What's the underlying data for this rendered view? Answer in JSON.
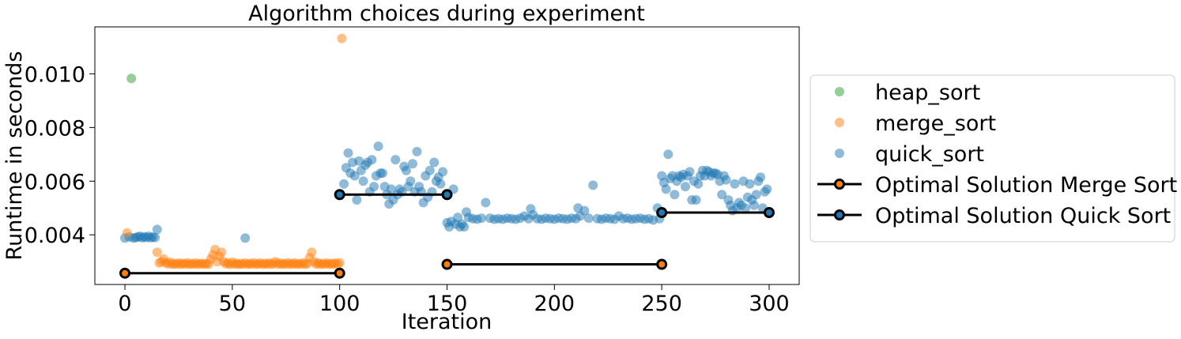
{
  "chart_data": {
    "type": "scatter",
    "title": "Algorithm choices during experiment",
    "xlabel": "Iteration",
    "ylabel": "Runtime in seconds",
    "xlim": [
      -14,
      314
    ],
    "ylim": [
      0.00215,
      0.01175
    ],
    "xticks": [
      0,
      50,
      100,
      150,
      200,
      250,
      300
    ],
    "yticks": [
      0.004,
      0.006,
      0.008,
      0.01
    ],
    "ytick_labels": [
      "0.004",
      "0.006",
      "0.008",
      "0.010"
    ],
    "grid": false,
    "legend_position": "right",
    "colors": {
      "heap_sort": "#2ca02c",
      "merge_sort": "#ff7f0e",
      "quick_sort": "#1f77b4",
      "optimal_line": "#000000"
    },
    "scatter_series": [
      {
        "name": "heap_sort",
        "points": [
          [
            3,
            0.00983
          ]
        ]
      },
      {
        "name": "merge_sort",
        "points": [
          [
            1,
            0.00407
          ],
          [
            15,
            0.00335
          ],
          [
            16,
            0.00295
          ],
          [
            17,
            0.003
          ],
          [
            18,
            0.0031
          ],
          [
            19,
            0.00296
          ],
          [
            20,
            0.00292
          ],
          [
            21,
            0.00298
          ],
          [
            22,
            0.0029
          ],
          [
            23,
            0.00293
          ],
          [
            24,
            0.00291
          ],
          [
            25,
            0.00295
          ],
          [
            26,
            0.0029
          ],
          [
            27,
            0.00294
          ],
          [
            28,
            0.00291
          ],
          [
            29,
            0.00296
          ],
          [
            30,
            0.0029
          ],
          [
            31,
            0.00293
          ],
          [
            32,
            0.00291
          ],
          [
            33,
            0.00295
          ],
          [
            34,
            0.0029
          ],
          [
            35,
            0.00292
          ],
          [
            36,
            0.00294
          ],
          [
            37,
            0.0029
          ],
          [
            38,
            0.00293
          ],
          [
            39,
            0.00291
          ],
          [
            40,
            0.0031
          ],
          [
            41,
            0.00325
          ],
          [
            42,
            0.00345
          ],
          [
            43,
            0.003
          ],
          [
            44,
            0.0032
          ],
          [
            45,
            0.00335
          ],
          [
            46,
            0.003
          ],
          [
            47,
            0.00292
          ],
          [
            48,
            0.00295
          ],
          [
            49,
            0.0029
          ],
          [
            50,
            0.00298
          ],
          [
            51,
            0.00291
          ],
          [
            52,
            0.00294
          ],
          [
            53,
            0.0029
          ],
          [
            54,
            0.00293
          ],
          [
            55,
            0.00291
          ],
          [
            56,
            0.00295
          ],
          [
            57,
            0.0029
          ],
          [
            58,
            0.00293
          ],
          [
            59,
            0.00291
          ],
          [
            60,
            0.00296
          ],
          [
            61,
            0.0029
          ],
          [
            62,
            0.00292
          ],
          [
            63,
            0.00295
          ],
          [
            64,
            0.0029
          ],
          [
            65,
            0.00293
          ],
          [
            66,
            0.00291
          ],
          [
            67,
            0.00295
          ],
          [
            68,
            0.0029
          ],
          [
            69,
            0.00293
          ],
          [
            70,
            0.003
          ],
          [
            71,
            0.00291
          ],
          [
            72,
            0.00295
          ],
          [
            73,
            0.0029
          ],
          [
            74,
            0.00293
          ],
          [
            75,
            0.00291
          ],
          [
            76,
            0.00296
          ],
          [
            77,
            0.0029
          ],
          [
            78,
            0.00292
          ],
          [
            79,
            0.00295
          ],
          [
            80,
            0.0029
          ],
          [
            81,
            0.00293
          ],
          [
            82,
            0.00291
          ],
          [
            83,
            0.00295
          ],
          [
            84,
            0.0029
          ],
          [
            85,
            0.00293
          ],
          [
            86,
            0.00315
          ],
          [
            87,
            0.00335
          ],
          [
            88,
            0.003
          ],
          [
            89,
            0.00291
          ],
          [
            90,
            0.00295
          ],
          [
            91,
            0.0029
          ],
          [
            92,
            0.00293
          ],
          [
            93,
            0.00291
          ],
          [
            94,
            0.00295
          ],
          [
            95,
            0.0029
          ],
          [
            96,
            0.00293
          ],
          [
            97,
            0.00291
          ],
          [
            98,
            0.00295
          ],
          [
            99,
            0.0029
          ],
          [
            100,
            0.00296
          ],
          [
            101,
            0.01132
          ]
        ]
      },
      {
        "name": "quick_sort",
        "points": [
          [
            0,
            0.00388
          ],
          [
            2,
            0.00392
          ],
          [
            4,
            0.00388
          ],
          [
            5,
            0.0039
          ],
          [
            6,
            0.00392
          ],
          [
            7,
            0.00395
          ],
          [
            8,
            0.00389
          ],
          [
            9,
            0.00393
          ],
          [
            10,
            0.0039
          ],
          [
            11,
            0.00395
          ],
          [
            12,
            0.00389
          ],
          [
            13,
            0.00392
          ],
          [
            14,
            0.0039
          ],
          [
            15,
            0.0042
          ],
          [
            56,
            0.00388
          ],
          [
            102,
            0.0059
          ],
          [
            103,
            0.0065
          ],
          [
            104,
            0.00705
          ],
          [
            105,
            0.0063
          ],
          [
            106,
            0.0067
          ],
          [
            107,
            0.0062
          ],
          [
            108,
            0.0053
          ],
          [
            109,
            0.00675
          ],
          [
            110,
            0.0064
          ],
          [
            111,
            0.006
          ],
          [
            112,
            0.0066
          ],
          [
            113,
            0.0067
          ],
          [
            114,
            0.0056
          ],
          [
            115,
            0.0068
          ],
          [
            116,
            0.0058
          ],
          [
            117,
            0.0062
          ],
          [
            118,
            0.0073
          ],
          [
            119,
            0.0063
          ],
          [
            120,
            0.0063
          ],
          [
            121,
            0.0058
          ],
          [
            122,
            0.0055
          ],
          [
            123,
            0.00515
          ],
          [
            124,
            0.0057
          ],
          [
            125,
            0.0053
          ],
          [
            126,
            0.0068
          ],
          [
            127,
            0.0055
          ],
          [
            128,
            0.0057
          ],
          [
            129,
            0.0056
          ],
          [
            130,
            0.00655
          ],
          [
            131,
            0.0064
          ],
          [
            132,
            0.0058
          ],
          [
            133,
            0.006
          ],
          [
            134,
            0.00665
          ],
          [
            135,
            0.0056
          ],
          [
            136,
            0.0071
          ],
          [
            137,
            0.0058
          ],
          [
            138,
            0.0056
          ],
          [
            139,
            0.0052
          ],
          [
            140,
            0.0062
          ],
          [
            141,
            0.0054
          ],
          [
            142,
            0.0064
          ],
          [
            143,
            0.0056
          ],
          [
            144,
            0.0067
          ],
          [
            145,
            0.006
          ],
          [
            146,
            0.00615
          ],
          [
            147,
            0.0059
          ],
          [
            148,
            0.00635
          ],
          [
            150,
            0.00445
          ],
          [
            151,
            0.0043
          ],
          [
            152,
            0.0045
          ],
          [
            153,
            0.0057
          ],
          [
            154,
            0.0044
          ],
          [
            155,
            0.00465
          ],
          [
            156,
            0.0043
          ],
          [
            157,
            0.0044
          ],
          [
            158,
            0.0043
          ],
          [
            159,
            0.00485
          ],
          [
            160,
            0.00465
          ],
          [
            162,
            0.0046
          ],
          [
            164,
            0.00458
          ],
          [
            166,
            0.00462
          ],
          [
            168,
            0.0052
          ],
          [
            170,
            0.00462
          ],
          [
            172,
            0.00458
          ],
          [
            174,
            0.0046
          ],
          [
            176,
            0.00458
          ],
          [
            178,
            0.00462
          ],
          [
            180,
            0.0046
          ],
          [
            182,
            0.00458
          ],
          [
            184,
            0.00462
          ],
          [
            186,
            0.0047
          ],
          [
            188,
            0.0046
          ],
          [
            189,
            0.00497
          ],
          [
            190,
            0.00475
          ],
          [
            192,
            0.0046
          ],
          [
            194,
            0.00458
          ],
          [
            196,
            0.00462
          ],
          [
            198,
            0.0046
          ],
          [
            200,
            0.00458
          ],
          [
            202,
            0.00462
          ],
          [
            204,
            0.0046
          ],
          [
            206,
            0.00458
          ],
          [
            208,
            0.00462
          ],
          [
            210,
            0.0046
          ],
          [
            211,
            0.005
          ],
          [
            212,
            0.0047
          ],
          [
            214,
            0.0049
          ],
          [
            216,
            0.00462
          ],
          [
            218,
            0.00585
          ],
          [
            220,
            0.0046
          ],
          [
            222,
            0.00458
          ],
          [
            224,
            0.00462
          ],
          [
            226,
            0.0046
          ],
          [
            228,
            0.00458
          ],
          [
            230,
            0.0047
          ],
          [
            232,
            0.0046
          ],
          [
            234,
            0.00462
          ],
          [
            236,
            0.00458
          ],
          [
            238,
            0.0046
          ],
          [
            240,
            0.00462
          ],
          [
            242,
            0.00458
          ],
          [
            244,
            0.0046
          ],
          [
            246,
            0.00455
          ],
          [
            248,
            0.005
          ],
          [
            249,
            0.0046
          ],
          [
            250,
            0.0062
          ],
          [
            251,
            0.00595
          ],
          [
            252,
            0.0057
          ],
          [
            253,
            0.007
          ],
          [
            254,
            0.0061
          ],
          [
            255,
            0.0062
          ],
          [
            256,
            0.0055
          ],
          [
            257,
            0.006
          ],
          [
            258,
            0.0062
          ],
          [
            259,
            0.00615
          ],
          [
            260,
            0.00625
          ],
          [
            261,
            0.0058
          ],
          [
            262,
            0.0062
          ],
          [
            263,
            0.00635
          ],
          [
            264,
            0.0053
          ],
          [
            265,
            0.006
          ],
          [
            266,
            0.0053
          ],
          [
            267,
            0.0059
          ],
          [
            268,
            0.0062
          ],
          [
            269,
            0.0064
          ],
          [
            270,
            0.0062
          ],
          [
            271,
            0.0064
          ],
          [
            272,
            0.00635
          ],
          [
            273,
            0.0062
          ],
          [
            274,
            0.0063
          ],
          [
            275,
            0.0063
          ],
          [
            276,
            0.00625
          ],
          [
            277,
            0.006
          ],
          [
            278,
            0.0055
          ],
          [
            279,
            0.0062
          ],
          [
            280,
            0.00605
          ],
          [
            281,
            0.0053
          ],
          [
            282,
            0.0051
          ],
          [
            283,
            0.0049
          ],
          [
            284,
            0.0059
          ],
          [
            285,
            0.005
          ],
          [
            286,
            0.0052
          ],
          [
            287,
            0.0051
          ],
          [
            288,
            0.006
          ],
          [
            289,
            0.005
          ],
          [
            290,
            0.0054
          ],
          [
            291,
            0.0059
          ],
          [
            292,
            0.0053
          ],
          [
            293,
            0.0051
          ],
          [
            294,
            0.0055
          ],
          [
            295,
            0.006
          ],
          [
            296,
            0.00615
          ],
          [
            297,
            0.005
          ],
          [
            298,
            0.0056
          ],
          [
            299,
            0.0057
          ]
        ]
      }
    ],
    "line_series": [
      {
        "name": "Optimal Solution Merge Sort",
        "marker_edge": "#000000",
        "marker_face": "#ff7f0e",
        "segments": [
          [
            [
              0,
              0.00257
            ],
            [
              100,
              0.00257
            ]
          ],
          [
            [
              150,
              0.0029
            ],
            [
              250,
              0.0029
            ]
          ]
        ]
      },
      {
        "name": "Optimal Solution Quick Sort",
        "marker_edge": "#000000",
        "marker_face": "#1f77b4",
        "segments": [
          [
            [
              100,
              0.0055
            ],
            [
              150,
              0.0055
            ]
          ],
          [
            [
              250,
              0.00483
            ],
            [
              300,
              0.00483
            ]
          ]
        ]
      }
    ]
  }
}
